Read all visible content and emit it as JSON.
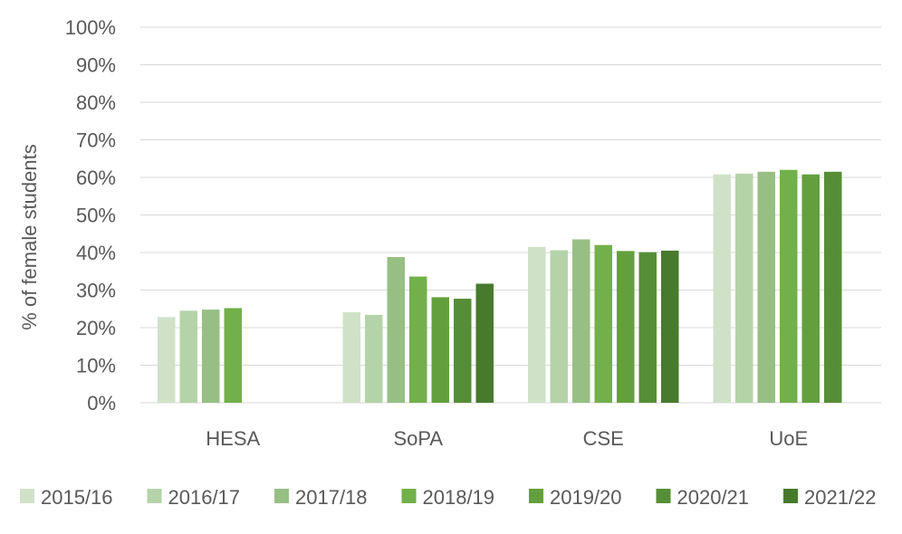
{
  "chart_data": {
    "type": "bar",
    "title": "",
    "xlabel": "",
    "ylabel": "% of female students",
    "ylim": [
      0,
      100
    ],
    "yticks": [
      "0%",
      "10%",
      "20%",
      "30%",
      "40%",
      "50%",
      "60%",
      "70%",
      "80%",
      "90%",
      "100%"
    ],
    "grid": true,
    "legend_position": "bottom",
    "categories": [
      "HESA",
      "SoPA",
      "CSE",
      "UoE"
    ],
    "series": [
      {
        "name": "2015/16",
        "color": "#cfe2c8",
        "values": [
          22.8,
          24.1,
          41.5,
          60.8
        ]
      },
      {
        "name": "2016/17",
        "color": "#b5d3a8",
        "values": [
          24.5,
          23.4,
          40.6,
          61.0
        ]
      },
      {
        "name": "2017/18",
        "color": "#97bf83",
        "values": [
          24.8,
          38.8,
          43.5,
          61.5
        ]
      },
      {
        "name": "2018/19",
        "color": "#72b04a",
        "values": [
          25.2,
          33.6,
          42.0,
          62.0
        ]
      },
      {
        "name": "2019/20",
        "color": "#63a03d",
        "values": [
          null,
          28.1,
          40.4,
          60.8
        ]
      },
      {
        "name": "2020/21",
        "color": "#558e36",
        "values": [
          null,
          27.7,
          40.1,
          61.5
        ]
      },
      {
        "name": "2021/22",
        "color": "#487a2e",
        "values": [
          null,
          31.7,
          40.5,
          null
        ]
      }
    ]
  }
}
